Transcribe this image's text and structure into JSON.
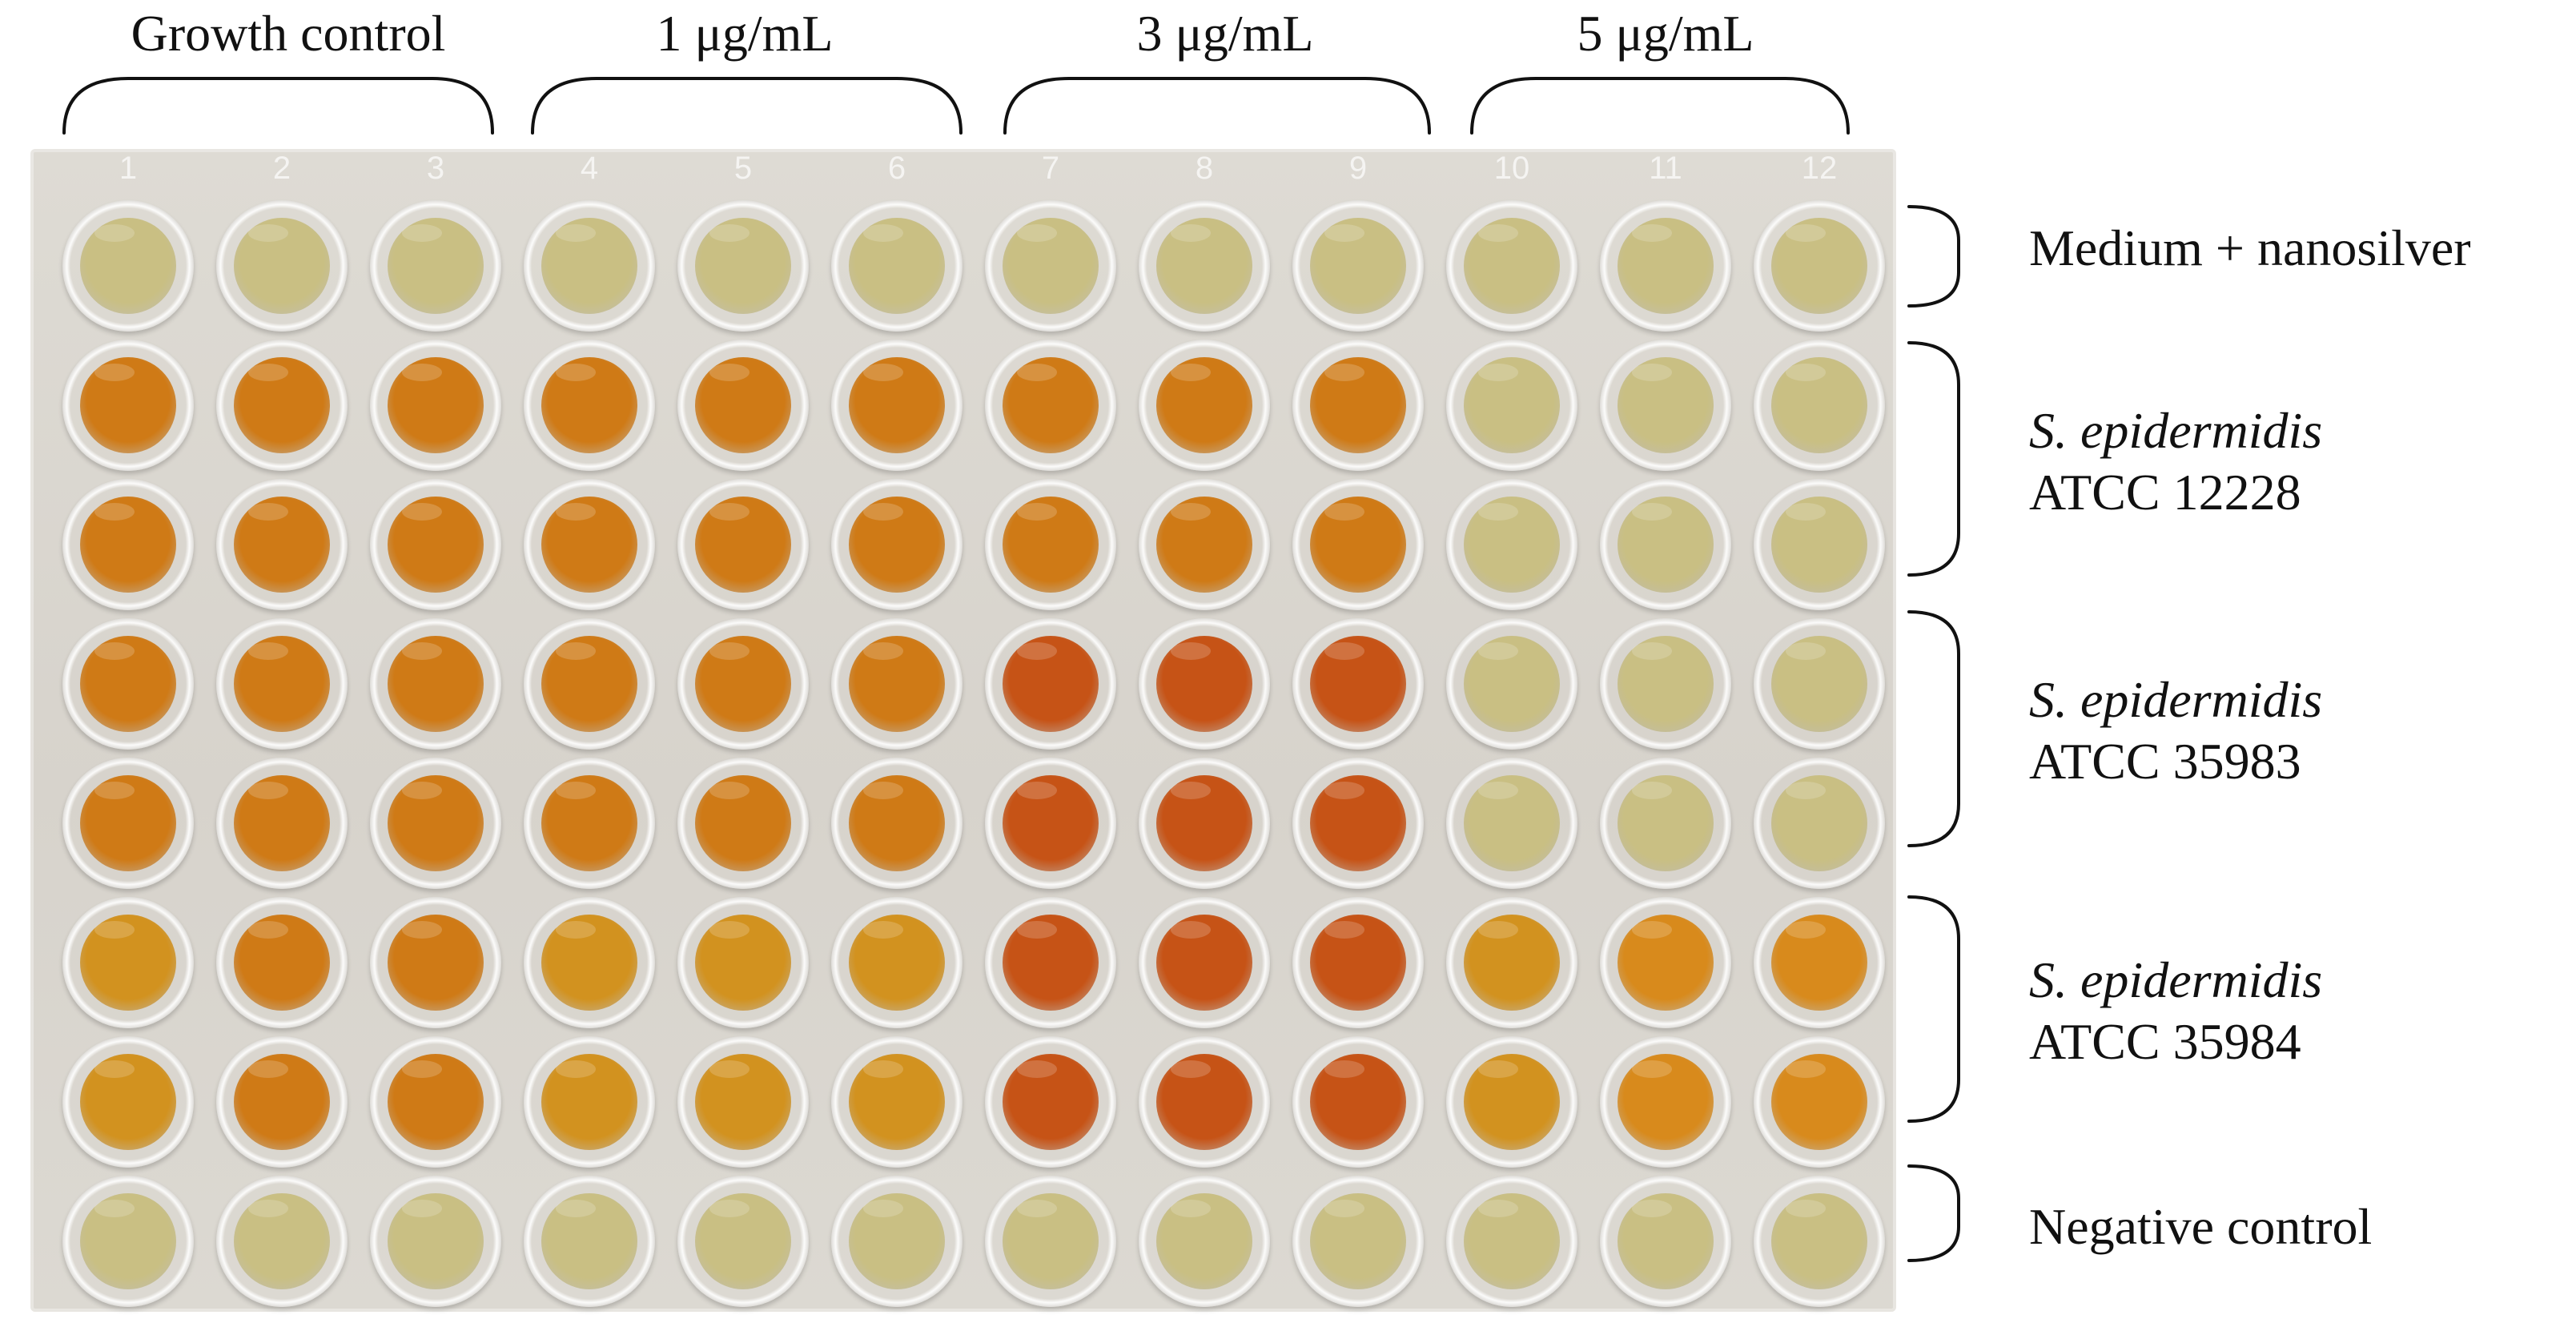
{
  "concentration_headers": [
    "Growth control",
    "1 μg/mL",
    "3 μg/mL",
    "5 μg/mL"
  ],
  "plate": {
    "column_numbers": [
      "1",
      "2",
      "3",
      "4",
      "5",
      "6",
      "7",
      "8",
      "9",
      "10",
      "11",
      "12"
    ],
    "well_colors": {
      "pale": "#c9bf83",
      "amber": "#cf7a16",
      "deep_orange": "#c65316",
      "yellow_amber": "#d2921f",
      "mid_amber": "#d88a1c"
    }
  },
  "row_groups": [
    {
      "line1": "Medium + nanosilver",
      "line2": ""
    },
    {
      "line1": "S. epidermidis",
      "line2": "ATCC 12228"
    },
    {
      "line1": "S. epidermidis",
      "line2": "ATCC 35983"
    },
    {
      "line1": "S. epidermidis",
      "line2": "ATCC 35984"
    },
    {
      "line1": "Negative control",
      "line2": ""
    }
  ]
}
